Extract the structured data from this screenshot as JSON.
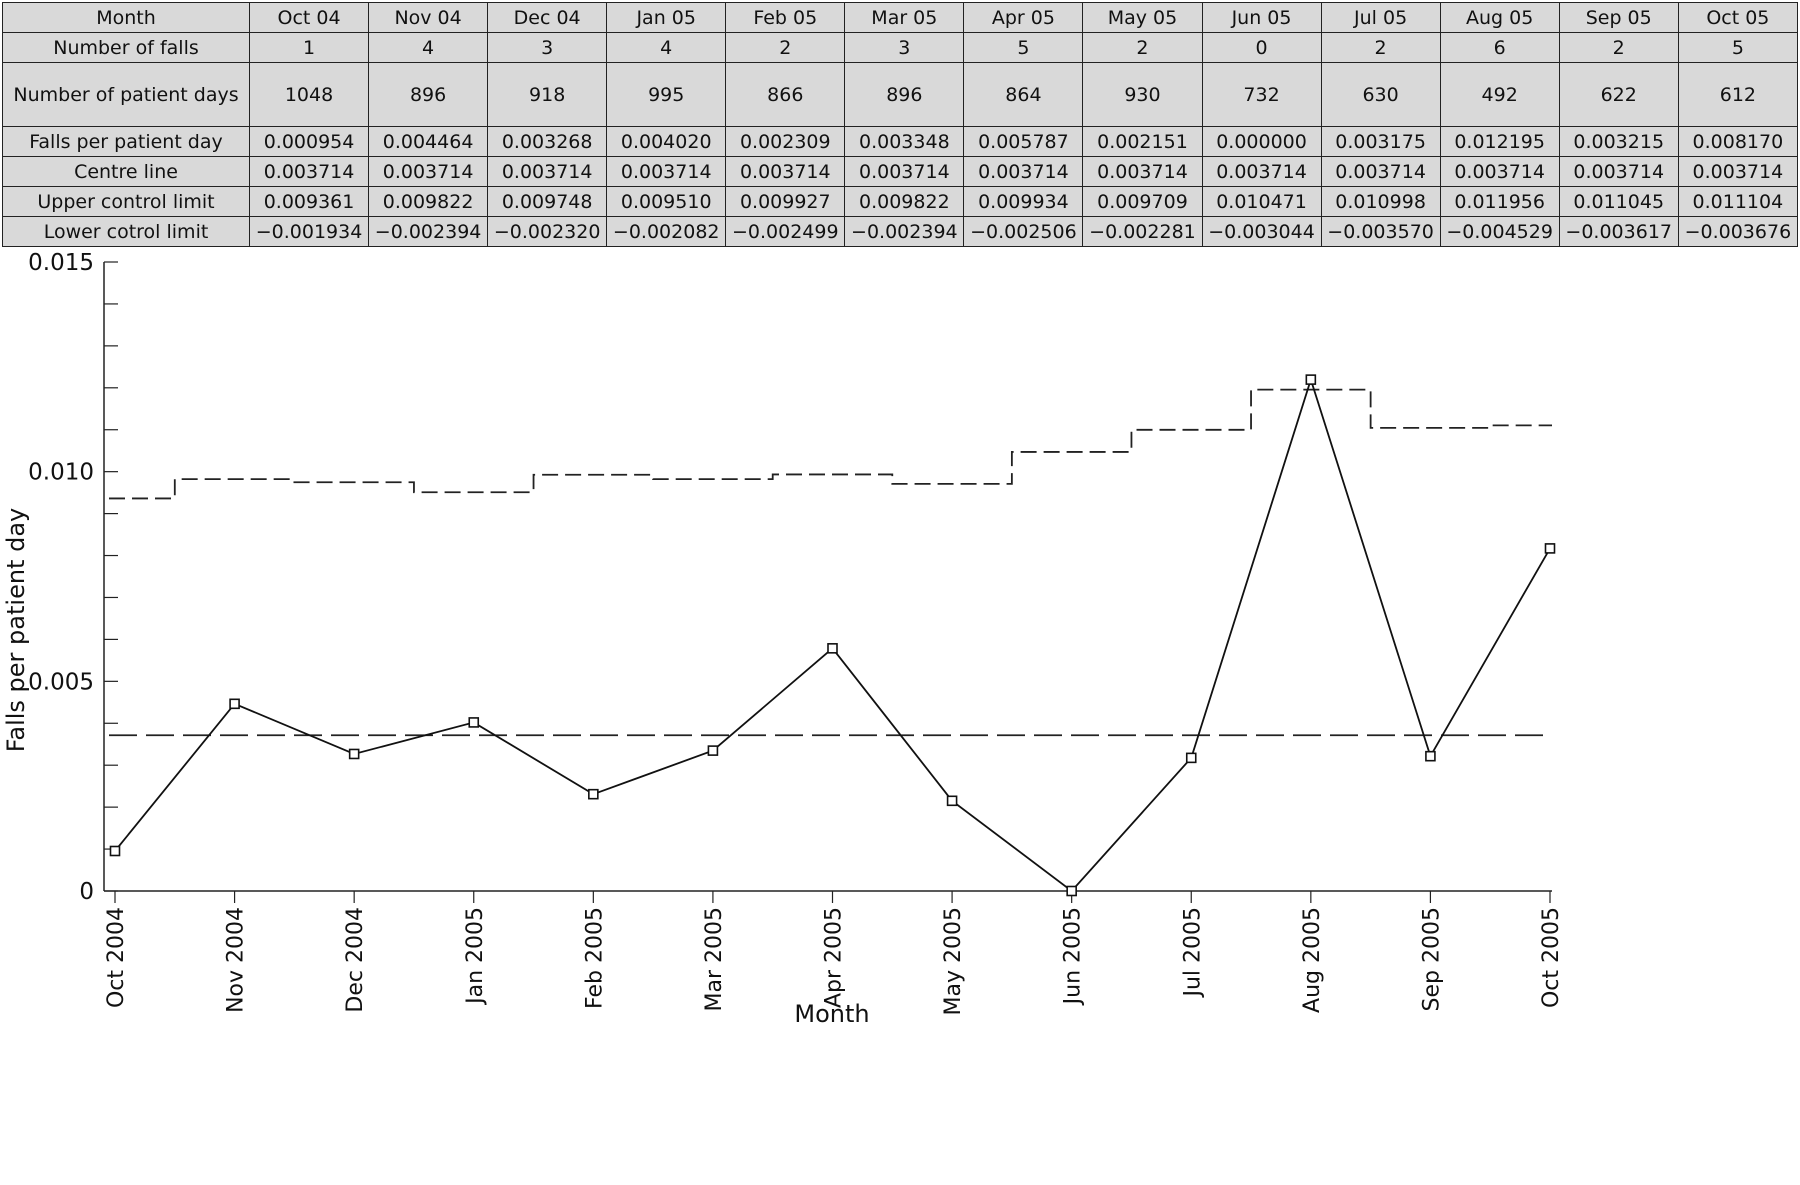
{
  "table": {
    "rows": [
      {
        "label": "Month",
        "cells": [
          "Oct 04",
          "Nov 04",
          "Dec 04",
          "Jan 05",
          "Feb 05",
          "Mar 05",
          "Apr 05",
          "May 05",
          "Jun 05",
          "Jul 05",
          "Aug 05",
          "Sep 05",
          "Oct 05"
        ]
      },
      {
        "label": "Number of falls",
        "cells": [
          "1",
          "4",
          "3",
          "4",
          "2",
          "3",
          "5",
          "2",
          "0",
          "2",
          "6",
          "2",
          "5"
        ]
      },
      {
        "label": "Number of patient days",
        "cells": [
          "1048",
          "896",
          "918",
          "995",
          "866",
          "896",
          "864",
          "930",
          "732",
          "630",
          "492",
          "622",
          "612"
        ]
      },
      {
        "label": "Falls per patient day",
        "cells": [
          "0.000954",
          "0.004464",
          "0.003268",
          "0.004020",
          "0.002309",
          "0.003348",
          "0.005787",
          "0.002151",
          "0.000000",
          "0.003175",
          "0.012195",
          "0.003215",
          "0.008170"
        ]
      },
      {
        "label": "Centre line",
        "cells": [
          "0.003714",
          "0.003714",
          "0.003714",
          "0.003714",
          "0.003714",
          "0.003714",
          "0.003714",
          "0.003714",
          "0.003714",
          "0.003714",
          "0.003714",
          "0.003714",
          "0.003714"
        ]
      },
      {
        "label": "Upper control limit",
        "cells": [
          "0.009361",
          "0.009822",
          "0.009748",
          "0.009510",
          "0.009927",
          "0.009822",
          "0.009934",
          "0.009709",
          "0.010471",
          "0.010998",
          "0.011956",
          "0.011045",
          "0.011104"
        ]
      },
      {
        "label": "Lower cotrol limit",
        "cells": [
          "−0.001934",
          "−0.002394",
          "−0.002320",
          "−0.002082",
          "−0.002499",
          "−0.002394",
          "−0.002506",
          "−0.002281",
          "−0.003044",
          "−0.003570",
          "−0.004529",
          "−0.003617",
          "−0.003676"
        ]
      }
    ]
  },
  "chart_data": {
    "type": "line",
    "xlabel": "Month",
    "ylabel": "Falls per patient day",
    "categories": [
      "Oct 2004",
      "Nov 2004",
      "Dec 2004",
      "Jan 2005",
      "Feb 2005",
      "Mar 2005",
      "Apr 2005",
      "May 2005",
      "Jun 2005",
      "Jul 2005",
      "Aug 2005",
      "Sep 2005",
      "Oct 2005"
    ],
    "ylim": [
      0,
      0.015
    ],
    "yticks": [
      0,
      0.005,
      0.01,
      0.015
    ],
    "ytick_labels": [
      "0",
      "0.005",
      "0.010",
      "0.015"
    ],
    "grid": false,
    "series": [
      {
        "style": "solid-markers",
        "values": [
          0.000954,
          0.004464,
          0.003268,
          0.00402,
          0.002309,
          0.003348,
          0.005787,
          0.002151,
          0.0,
          0.003175,
          0.012195,
          0.003215,
          0.00817
        ]
      },
      {
        "style": "long-dash",
        "values": [
          0.003714,
          0.003714,
          0.003714,
          0.003714,
          0.003714,
          0.003714,
          0.003714,
          0.003714,
          0.003714,
          0.003714,
          0.003714,
          0.003714,
          0.003714
        ]
      },
      {
        "style": "short-dash-step",
        "values": [
          0.009361,
          0.009822,
          0.009748,
          0.00951,
          0.009927,
          0.009822,
          0.009934,
          0.009709,
          0.010471,
          0.010998,
          0.011956,
          0.011045,
          0.011104
        ]
      }
    ]
  }
}
